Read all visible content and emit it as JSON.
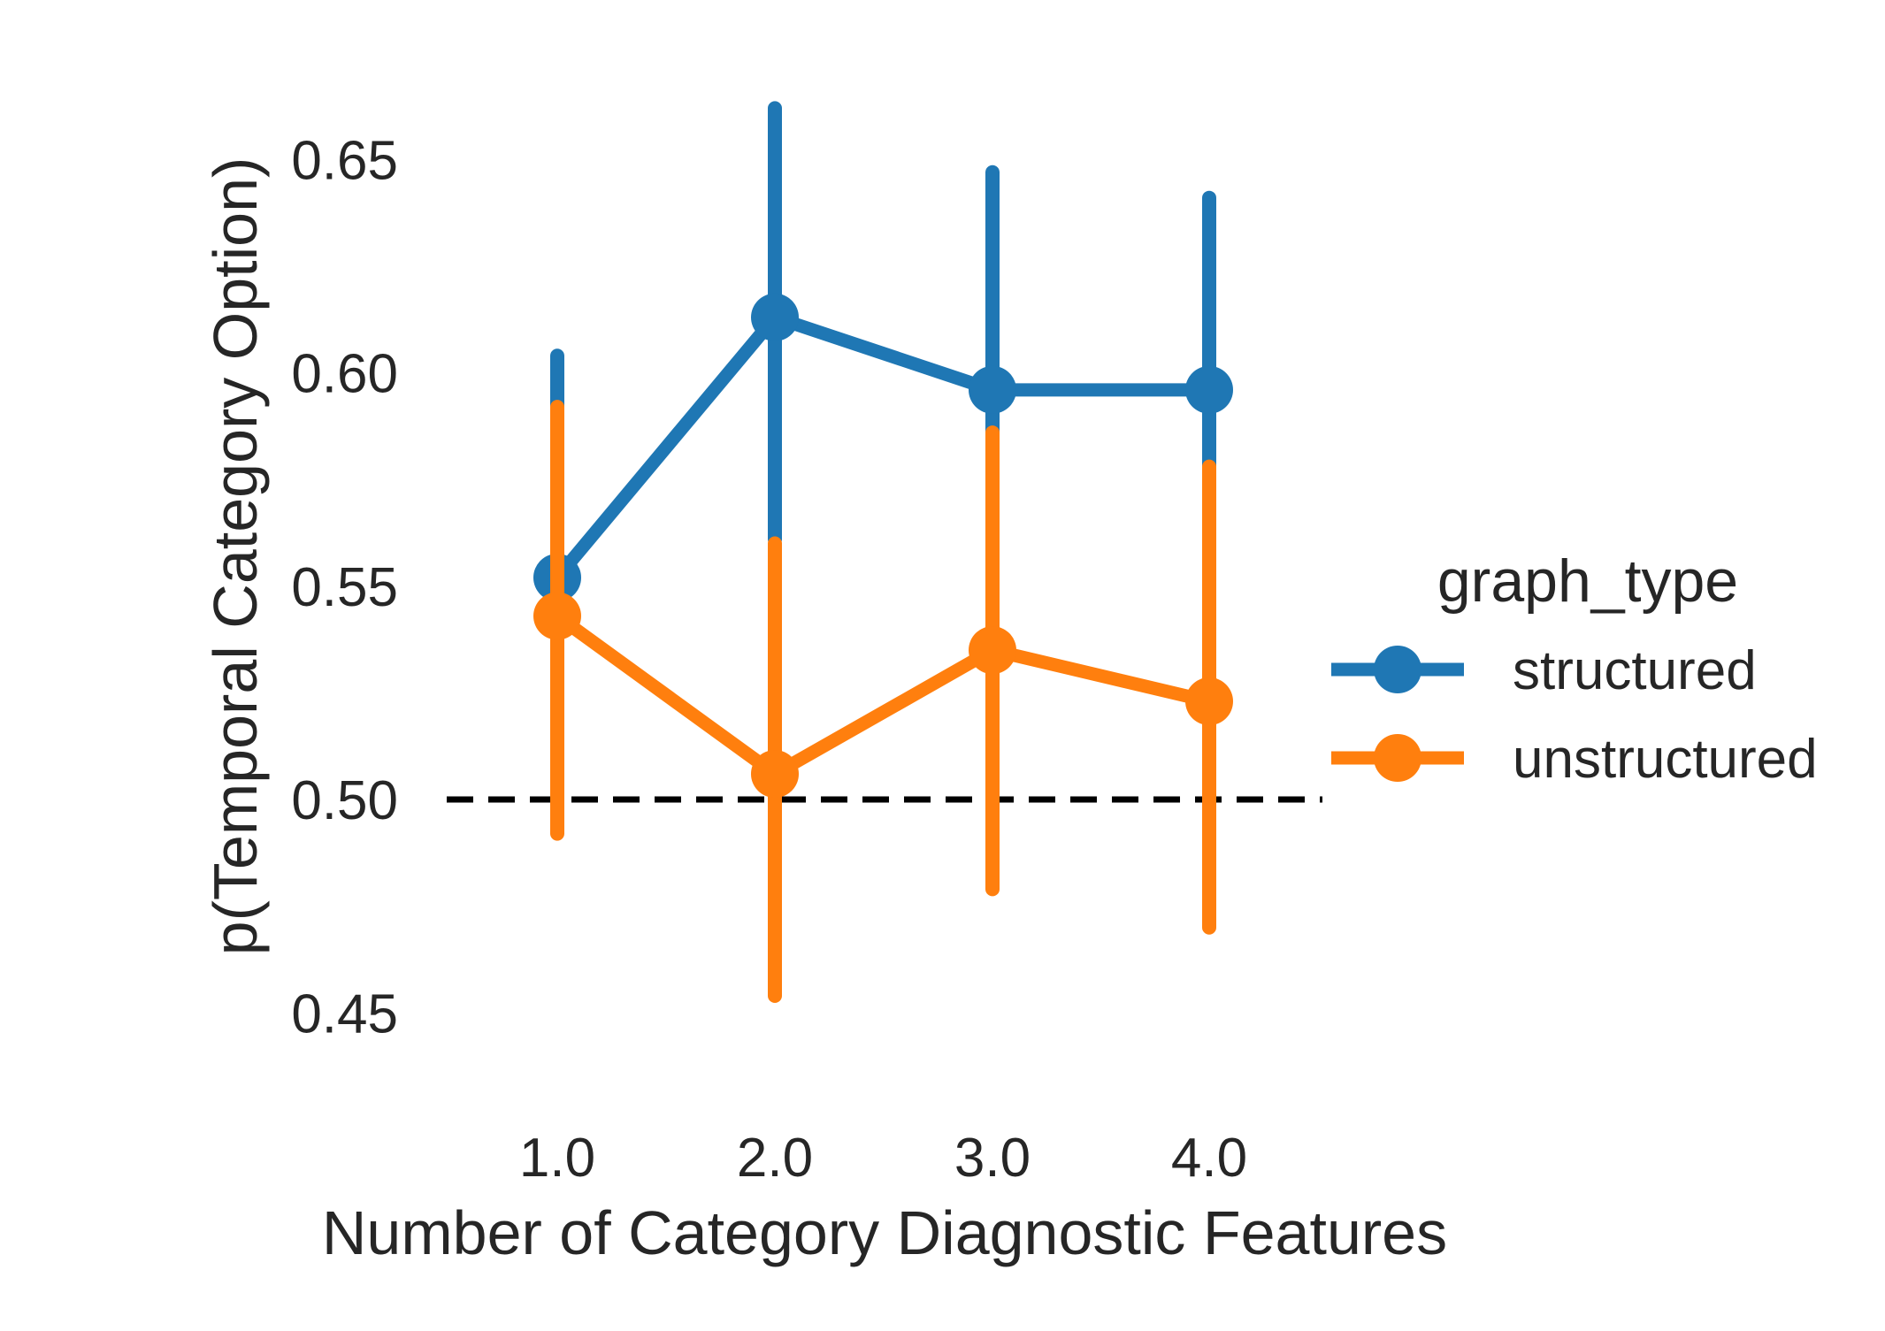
{
  "chart_data": {
    "type": "line",
    "xlabel": "Number of Category Diagnostic Features",
    "ylabel": "p(Temporal Category Option)",
    "categories": [
      "1.0",
      "2.0",
      "3.0",
      "4.0"
    ],
    "yticks": [
      "0.45",
      "0.50",
      "0.55",
      "0.60",
      "0.65"
    ],
    "ylim": [
      0.437,
      0.677
    ],
    "grid": false,
    "reference_line": {
      "y": 0.5,
      "style": "dashed",
      "color": "#000000"
    },
    "legend": {
      "title": "graph_type",
      "placement": "right",
      "entries": [
        "structured",
        "unstructured"
      ]
    },
    "series": [
      {
        "name": "structured",
        "color": "#1f77b4",
        "values": [
          0.552,
          0.613,
          0.596,
          0.596
        ],
        "ci_low": [
          0.514,
          0.561,
          0.559,
          0.577
        ],
        "ci_high": [
          0.604,
          0.662,
          0.647,
          0.641
        ]
      },
      {
        "name": "unstructured",
        "color": "#ff7f0e",
        "values": [
          0.543,
          0.506,
          0.535,
          0.523
        ],
        "ci_low": [
          0.492,
          0.454,
          0.479,
          0.47
        ],
        "ci_high": [
          0.592,
          0.56,
          0.586,
          0.578
        ]
      }
    ]
  }
}
